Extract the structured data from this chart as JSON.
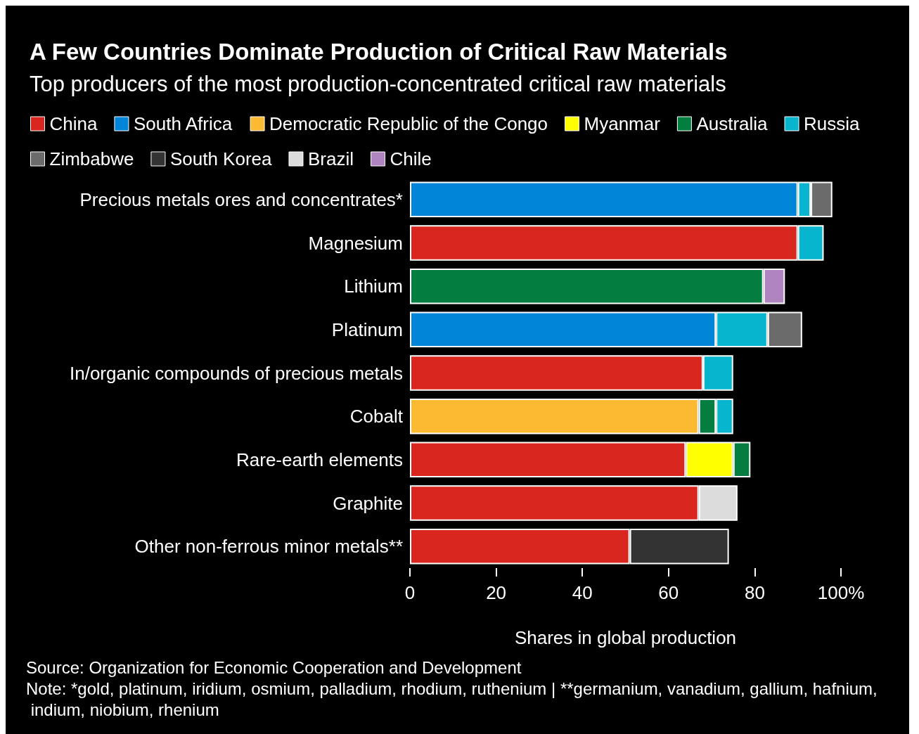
{
  "chart_data": {
    "type": "bar",
    "orientation": "horizontal",
    "stacked": true,
    "title": "A Few Countries Dominate Production of Critical Raw Materials",
    "subtitle": "Top producers of the most production-concentrated critical raw materials",
    "xlabel": "Shares in global production",
    "categories": [
      "Precious metals ores and concentrates*",
      "Magnesium",
      "Lithium",
      "Platinum",
      "In/organic compounds of precious metals",
      "Cobalt",
      "Rare-earth elements",
      "Graphite",
      "Other non-ferrous minor metals**"
    ],
    "series": [
      {
        "name": "China",
        "color": "#d9261f",
        "values": [
          null,
          90,
          null,
          null,
          68,
          null,
          64,
          67,
          51
        ]
      },
      {
        "name": "South Africa",
        "color": "#0185d9",
        "values": [
          90,
          null,
          null,
          71,
          null,
          null,
          null,
          null,
          null
        ]
      },
      {
        "name": "Democratic Republic of the Congo",
        "color": "#fbba31",
        "values": [
          null,
          null,
          null,
          null,
          null,
          67,
          null,
          null,
          null
        ]
      },
      {
        "name": "Myanmar",
        "color": "#ffff00",
        "values": [
          null,
          null,
          null,
          null,
          null,
          null,
          11,
          null,
          null
        ]
      },
      {
        "name": "Australia",
        "color": "#037e40",
        "values": [
          null,
          null,
          82,
          null,
          null,
          4,
          4,
          null,
          null
        ]
      },
      {
        "name": "Russia",
        "color": "#07b5ce",
        "values": [
          3,
          6,
          null,
          12,
          7,
          4,
          null,
          null,
          null
        ]
      },
      {
        "name": "Zimbabwe",
        "color": "#6b6b6b",
        "values": [
          5,
          null,
          null,
          8,
          null,
          null,
          null,
          null,
          null
        ]
      },
      {
        "name": "South Korea",
        "color": "#333333",
        "values": [
          null,
          null,
          null,
          null,
          null,
          null,
          null,
          null,
          23
        ]
      },
      {
        "name": "Brazil",
        "color": "#dcdcdc",
        "values": [
          null,
          null,
          null,
          null,
          null,
          null,
          null,
          9,
          null
        ]
      },
      {
        "name": "Chile",
        "color": "#b084bf",
        "values": [
          null,
          null,
          5,
          null,
          null,
          null,
          null,
          null,
          null
        ]
      }
    ],
    "xlim": [
      0,
      100
    ],
    "xticks": [
      0,
      20,
      40,
      60,
      80,
      {
        "value": 100,
        "label": "100%"
      }
    ],
    "grid": false,
    "legend": "top",
    "annotations": [
      "Source: Organization for Economic Cooperation and Development",
      "Note: *gold, platinum, iridium, osmium, palladium, rhodium, ruthenium | **germanium, vanadium, gallium, hafnium, indium, niobium, rhenium"
    ]
  }
}
